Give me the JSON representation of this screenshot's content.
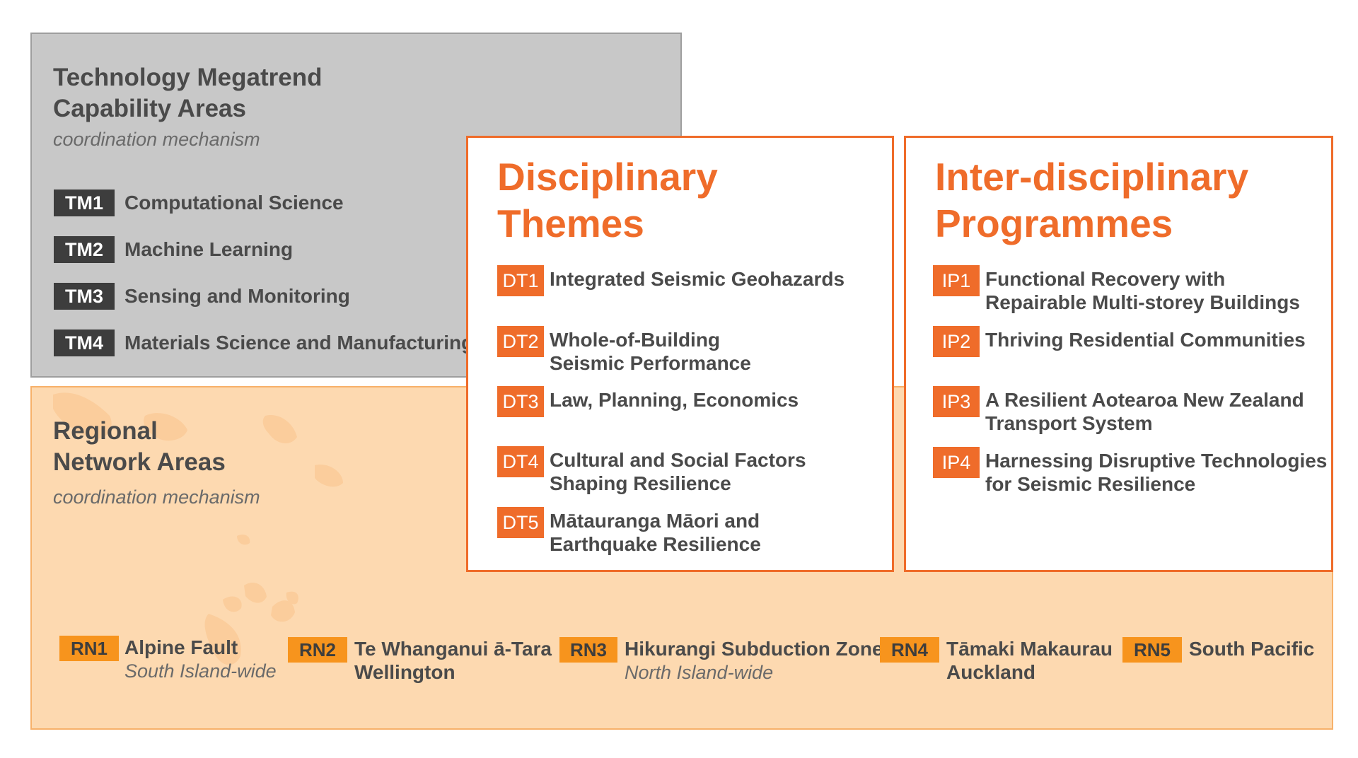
{
  "technology": {
    "title_line1": "Technology Megatrend",
    "title_line2": "Capability Areas",
    "subtitle": "coordination mechanism",
    "items": [
      {
        "code": "TM1",
        "label": "Computational Science"
      },
      {
        "code": "TM2",
        "label": "Machine Learning"
      },
      {
        "code": "TM3",
        "label": "Sensing and Monitoring"
      },
      {
        "code": "TM4",
        "label": "Materials Science and Manufacturing"
      }
    ]
  },
  "regional": {
    "title_line1": "Regional",
    "title_line2": "Network Areas",
    "subtitle": "coordination mechanism",
    "items": [
      {
        "code": "RN1",
        "name": "Alpine Fault",
        "sub": "South Island-wide"
      },
      {
        "code": "RN2",
        "name": "Te Whanganui ā-Tara\n Wellington",
        "sub": ""
      },
      {
        "code": "RN3",
        "name": "Hikurangi Subduction Zone",
        "sub": "North Island-wide"
      },
      {
        "code": "RN4",
        "name": "Tāmaki Makaurau\nAuckland",
        "sub": ""
      },
      {
        "code": "RN5",
        "name": "South Pacific",
        "sub": ""
      }
    ]
  },
  "disciplinary": {
    "title_line1": "Disciplinary",
    "title_line2": "Themes",
    "items": [
      {
        "code": "DT1",
        "label": "Integrated Seismic Geohazards"
      },
      {
        "code": "DT2",
        "label": "Whole-of-Building\nSeismic Performance"
      },
      {
        "code": "DT3",
        "label": "Law, Planning, Economics"
      },
      {
        "code": "DT4",
        "label": "Cultural and Social Factors\nShaping Resilience"
      },
      {
        "code": "DT5",
        "label": "Mātauranga Māori and\nEarthquake Resilience"
      }
    ]
  },
  "interdisciplinary": {
    "title_line1": "Inter-disciplinary",
    "title_line2": "Programmes",
    "items": [
      {
        "code": "IP1",
        "label": "Functional Recovery with\n Repairable Multi-storey Buildings"
      },
      {
        "code": "IP2",
        "label": "Thriving Residential Communities"
      },
      {
        "code": "IP3",
        "label": "A Resilient Aotearoa New Zealand\n Transport System"
      },
      {
        "code": "IP4",
        "label": "Harnessing Disruptive Technologies\n for Seismic Resilience"
      }
    ]
  },
  "colors": {
    "orange": "#ef6c2a",
    "rn_tag": "#f7941d",
    "grey_box": "#c8c8c8",
    "peach_box": "#fdd9b0",
    "dark_tag": "#3d3d3d"
  }
}
